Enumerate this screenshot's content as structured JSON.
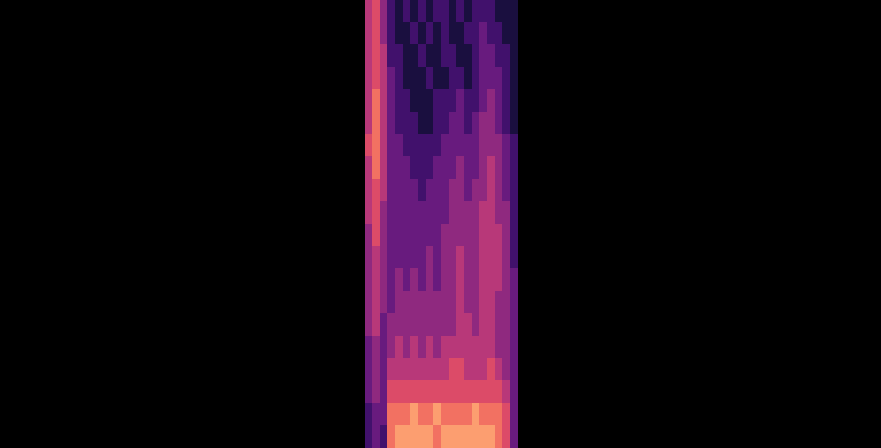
{
  "chart_data": {
    "type": "heatmap",
    "tick_labels": false,
    "cells": [
      [
        6,
        7,
        5,
        3,
        2,
        3,
        2,
        3,
        2,
        3,
        3,
        2,
        3,
        2,
        3,
        3,
        3,
        2,
        2,
        2
      ],
      [
        6,
        7,
        5,
        3,
        2,
        2,
        3,
        2,
        3,
        2,
        3,
        2,
        2,
        3,
        3,
        4,
        3,
        3,
        2,
        2
      ],
      [
        6,
        7,
        6,
        3,
        3,
        2,
        2,
        3,
        2,
        2,
        3,
        3,
        2,
        2,
        3,
        4,
        4,
        3,
        3,
        2
      ],
      [
        6,
        7,
        6,
        4,
        3,
        2,
        2,
        2,
        3,
        2,
        2,
        3,
        3,
        2,
        3,
        4,
        4,
        4,
        3,
        2
      ],
      [
        6,
        8,
        6,
        4,
        3,
        3,
        2,
        2,
        2,
        3,
        3,
        3,
        4,
        3,
        3,
        4,
        5,
        4,
        3,
        2
      ],
      [
        6,
        8,
        6,
        4,
        3,
        3,
        3,
        2,
        2,
        3,
        3,
        4,
        4,
        3,
        4,
        5,
        5,
        4,
        3,
        2
      ],
      [
        7,
        8,
        6,
        4,
        4,
        3,
        3,
        3,
        3,
        3,
        4,
        4,
        4,
        4,
        4,
        5,
        5,
        5,
        4,
        3
      ],
      [
        6,
        8,
        6,
        4,
        4,
        4,
        3,
        3,
        3,
        4,
        4,
        4,
        5,
        4,
        4,
        5,
        6,
        5,
        4,
        3
      ],
      [
        6,
        7,
        6,
        4,
        4,
        4,
        4,
        3,
        4,
        4,
        4,
        5,
        5,
        4,
        5,
        5,
        6,
        5,
        4,
        3
      ],
      [
        6,
        7,
        5,
        4,
        4,
        4,
        4,
        4,
        4,
        4,
        4,
        5,
        5,
        5,
        5,
        6,
        6,
        5,
        5,
        3
      ],
      [
        5,
        7,
        5,
        4,
        4,
        4,
        4,
        4,
        4,
        4,
        5,
        5,
        5,
        5,
        5,
        6,
        6,
        6,
        5,
        3
      ],
      [
        5,
        6,
        5,
        4,
        4,
        4,
        4,
        4,
        5,
        4,
        5,
        5,
        6,
        5,
        5,
        6,
        6,
        6,
        5,
        3
      ],
      [
        5,
        6,
        5,
        4,
        5,
        4,
        5,
        4,
        5,
        4,
        5,
        5,
        6,
        5,
        5,
        6,
        6,
        6,
        5,
        4
      ],
      [
        5,
        6,
        5,
        4,
        5,
        5,
        5,
        5,
        5,
        5,
        5,
        5,
        6,
        5,
        5,
        6,
        6,
        5,
        5,
        4
      ],
      [
        5,
        6,
        4,
        5,
        5,
        5,
        5,
        5,
        5,
        5,
        5,
        5,
        6,
        6,
        5,
        6,
        6,
        5,
        5,
        4
      ],
      [
        4,
        5,
        4,
        5,
        6,
        5,
        6,
        5,
        6,
        5,
        6,
        6,
        6,
        6,
        6,
        6,
        6,
        5,
        5,
        4
      ],
      [
        4,
        5,
        4,
        6,
        6,
        6,
        6,
        6,
        6,
        6,
        6,
        7,
        7,
        6,
        6,
        6,
        7,
        6,
        5,
        4
      ],
      [
        4,
        5,
        4,
        7,
        7,
        7,
        7,
        7,
        7,
        7,
        7,
        7,
        7,
        7,
        7,
        7,
        7,
        7,
        6,
        4
      ],
      [
        3,
        4,
        4,
        8,
        8,
        8,
        9,
        8,
        8,
        9,
        8,
        8,
        8,
        8,
        9,
        8,
        8,
        8,
        7,
        4
      ],
      [
        3,
        4,
        3,
        8,
        9,
        9,
        9,
        9,
        9,
        8,
        9,
        9,
        9,
        9,
        9,
        9,
        9,
        8,
        7,
        4
      ]
    ]
  }
}
